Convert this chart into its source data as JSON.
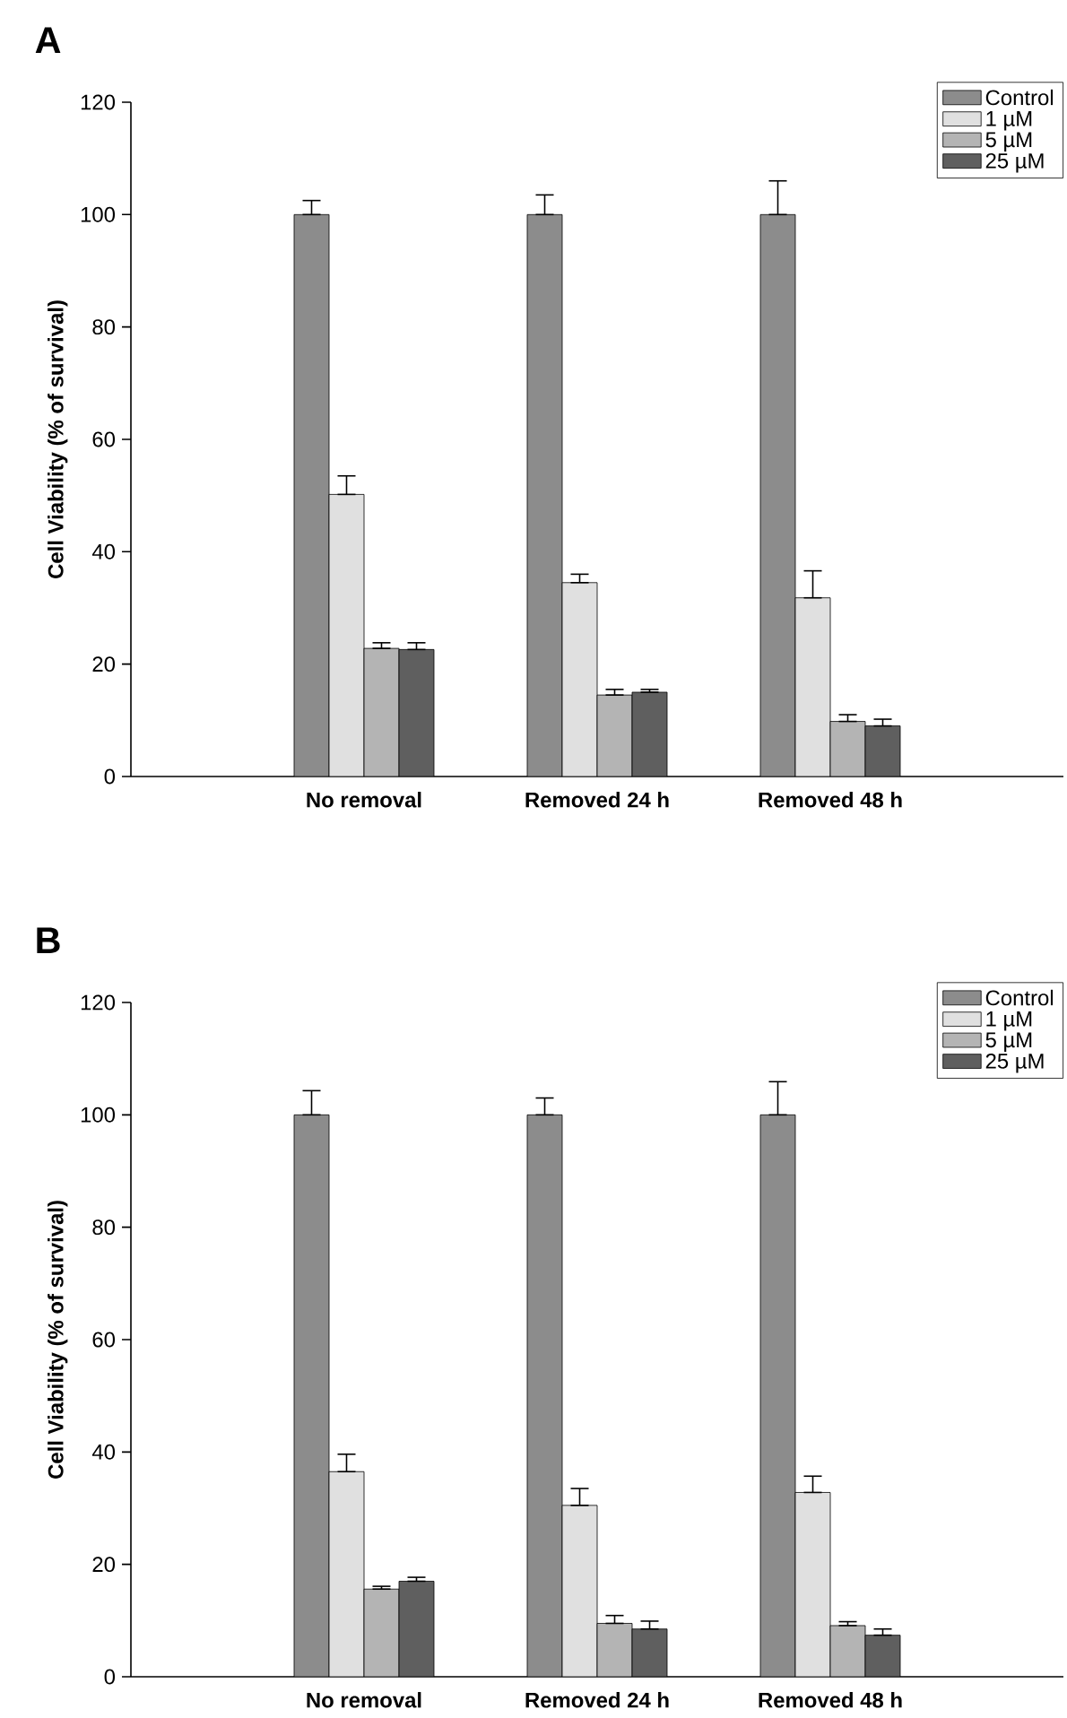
{
  "chart_data": [
    {
      "type": "bar",
      "title": "A",
      "ylabel": "Cell Viability (% of survival)",
      "categories": [
        "No removal",
        "Removed 24 h",
        "Removed 48 h"
      ],
      "ylim": [
        0,
        120
      ],
      "yticks": [
        0,
        20,
        40,
        60,
        80,
        100,
        120
      ],
      "legend": "top right",
      "series": [
        {
          "name": "Control",
          "color": "#8c8c8c",
          "values": [
            100,
            100,
            100
          ],
          "errors": [
            [
              100,
              102.5
            ],
            [
              100,
              103.5
            ],
            [
              100,
              106
            ]
          ]
        },
        {
          "name": "1 µM",
          "color": "#e0e0e0",
          "values": [
            50.2,
            34.5,
            31.8
          ],
          "errors": [
            [
              50.2,
              53.5
            ],
            [
              34.5,
              36
            ],
            [
              31.8,
              36.6
            ]
          ]
        },
        {
          "name": "5 µM",
          "color": "#b4b4b4",
          "values": [
            22.8,
            14.5,
            9.8
          ],
          "errors": [
            [
              22.8,
              23.8
            ],
            [
              14.5,
              15.5
            ],
            [
              9.8,
              11
            ]
          ]
        },
        {
          "name": "25 µM",
          "color": "#5f5f5f",
          "values": [
            22.6,
            15,
            9
          ],
          "errors": [
            [
              22.6,
              23.8
            ],
            [
              15,
              15.5
            ],
            [
              9,
              10.2
            ]
          ]
        }
      ]
    },
    {
      "type": "bar",
      "title": "B",
      "ylabel": "Cell Viability (% of survival)",
      "categories": [
        "No removal",
        "Removed 24 h",
        "Removed 48 h"
      ],
      "ylim": [
        0,
        120
      ],
      "yticks": [
        0,
        20,
        40,
        60,
        80,
        100,
        120
      ],
      "legend": "top right",
      "series": [
        {
          "name": "Control",
          "color": "#8c8c8c",
          "values": [
            100,
            100,
            100
          ],
          "errors": [
            [
              100,
              104.3
            ],
            [
              100,
              103
            ],
            [
              100,
              105.9
            ]
          ]
        },
        {
          "name": "1 µM",
          "color": "#e0e0e0",
          "values": [
            36.5,
            30.5,
            32.8
          ],
          "errors": [
            [
              36.5,
              39.6
            ],
            [
              30.5,
              33.5
            ],
            [
              32.8,
              35.7
            ]
          ]
        },
        {
          "name": "5 µM",
          "color": "#b4b4b4",
          "values": [
            15.6,
            9.5,
            9.1
          ],
          "errors": [
            [
              15.6,
              16.1
            ],
            [
              9.5,
              10.9
            ],
            [
              9.1,
              9.8
            ]
          ]
        },
        {
          "name": "25 µM",
          "color": "#5f5f5f",
          "values": [
            17,
            8.5,
            7.4
          ],
          "errors": [
            [
              17,
              17.7
            ],
            [
              8.5,
              9.9
            ],
            [
              7.4,
              8.5
            ]
          ]
        }
      ]
    }
  ]
}
